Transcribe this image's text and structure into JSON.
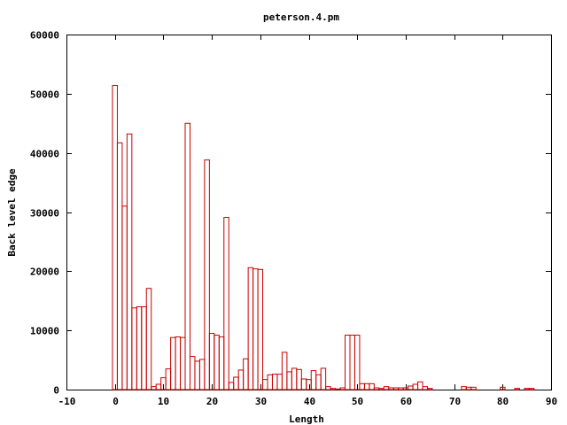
{
  "chart_data": {
    "type": "bar",
    "title": "peterson.4.pm",
    "xlabel": "Length",
    "ylabel": "Back level edge",
    "xlim": [
      -10,
      90
    ],
    "ylim": [
      0,
      60000
    ],
    "xticks": [
      -10,
      0,
      10,
      20,
      30,
      40,
      50,
      60,
      70,
      80,
      90
    ],
    "yticks": [
      0,
      10000,
      20000,
      30000,
      40000,
      50000,
      60000
    ],
    "bar_color": "#cc0000",
    "grid": false,
    "legend": "none",
    "x": [
      0,
      1,
      2,
      3,
      4,
      5,
      6,
      7,
      8,
      9,
      10,
      11,
      12,
      13,
      14,
      15,
      16,
      17,
      18,
      19,
      20,
      21,
      22,
      23,
      24,
      25,
      26,
      27,
      28,
      29,
      30,
      31,
      32,
      33,
      34,
      35,
      36,
      37,
      38,
      39,
      40,
      41,
      42,
      43,
      44,
      45,
      46,
      47,
      48,
      49,
      50,
      51,
      52,
      53,
      54,
      55,
      56,
      57,
      58,
      59,
      60,
      61,
      62,
      63,
      64,
      65,
      66,
      67,
      68,
      69,
      70,
      71,
      72,
      73,
      74,
      75,
      76,
      77,
      78,
      79,
      80,
      81,
      82,
      83,
      84,
      85,
      86
    ],
    "values": [
      51400,
      41700,
      31000,
      43200,
      13800,
      14000,
      14000,
      17100,
      500,
      900,
      2000,
      3500,
      8800,
      8900,
      8800,
      45000,
      5600,
      4800,
      5100,
      38800,
      9500,
      9200,
      8900,
      29100,
      1200,
      2100,
      3300,
      5200,
      20600,
      20400,
      20300,
      1700,
      2500,
      2600,
      2600,
      6300,
      3000,
      3600,
      3400,
      1800,
      1700,
      3200,
      2500,
      3600,
      500,
      200,
      100,
      300,
      9200,
      9200,
      9200,
      1000,
      1000,
      1000,
      300,
      200,
      500,
      300,
      300,
      300,
      300,
      600,
      900,
      1300,
      500,
      200,
      0,
      0,
      0,
      0,
      0,
      0,
      500,
      400,
      400,
      0,
      0,
      0,
      0,
      0,
      400,
      0,
      0,
      200,
      0,
      200,
      200
    ]
  }
}
